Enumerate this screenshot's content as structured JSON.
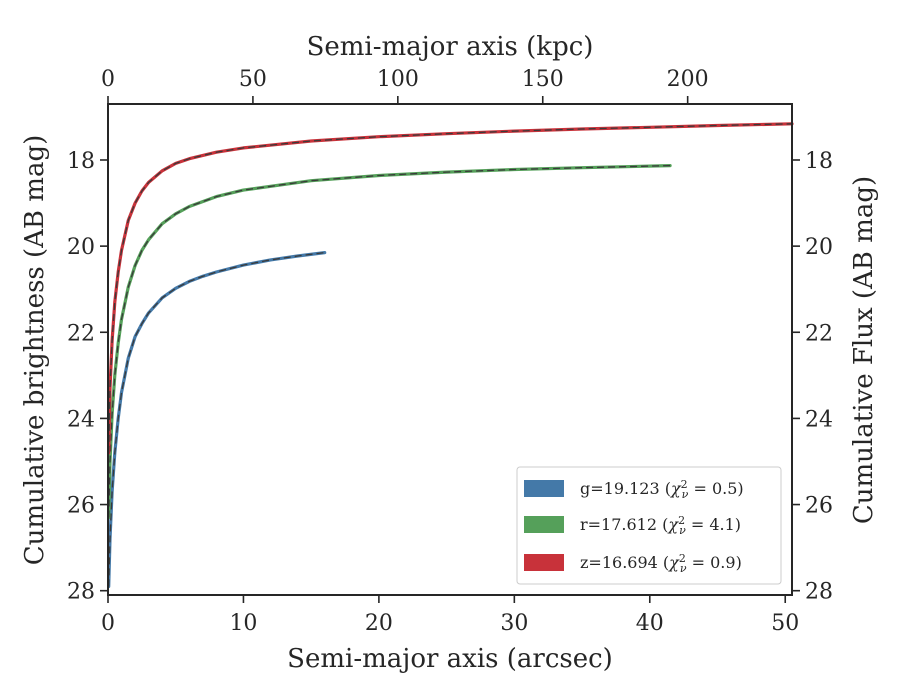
{
  "chart_data": {
    "type": "line",
    "axis_labels": {
      "bottom": "Semi-major axis (arcsec)",
      "top": "Semi-major axis (kpc)",
      "left": "Cumulative brightness (AB mag)",
      "right": "Cumulative Flux (AB mag)"
    },
    "xlim": [
      0,
      50.5
    ],
    "ylim": [
      28.1,
      16.7
    ],
    "y_inverted": true,
    "top_xlim_kpc": [
      0,
      236
    ],
    "x_ticks": [
      "0",
      "10",
      "20",
      "30",
      "40",
      "50"
    ],
    "y_ticks": [
      "18",
      "20",
      "22",
      "24",
      "26",
      "28"
    ],
    "top_ticks": [
      "0",
      "50",
      "100",
      "150",
      "200"
    ],
    "grid": false,
    "legend_position": "lower-right",
    "legend": [
      {
        "band": "g",
        "text": "g=19.123",
        "chi2": "0.5"
      },
      {
        "band": "r",
        "text": "r=17.612",
        "chi2": "4.1"
      },
      {
        "band": "z",
        "text": "z=16.694",
        "chi2": "0.9"
      }
    ],
    "series": [
      {
        "name": "g",
        "color": "#4479a8",
        "x": [
          0.05,
          0.15,
          0.3,
          0.5,
          0.75,
          1,
          1.5,
          2,
          2.5,
          3,
          4,
          5,
          6,
          7,
          8,
          10,
          12,
          14,
          16
        ],
        "y": [
          27.9,
          26.8,
          25.7,
          24.8,
          24.0,
          23.4,
          22.6,
          22.1,
          21.8,
          21.55,
          21.2,
          20.98,
          20.82,
          20.7,
          20.6,
          20.44,
          20.32,
          20.23,
          20.15
        ]
      },
      {
        "name": "r",
        "color": "#55a05a",
        "x": [
          0.05,
          0.15,
          0.3,
          0.5,
          0.75,
          1,
          1.5,
          2,
          2.5,
          3,
          4,
          5,
          6,
          8,
          10,
          15,
          20,
          25,
          30,
          35,
          41.5
        ],
        "y": [
          26.3,
          25.0,
          23.9,
          23.0,
          22.25,
          21.7,
          20.95,
          20.45,
          20.1,
          19.85,
          19.48,
          19.25,
          19.08,
          18.85,
          18.7,
          18.48,
          18.36,
          18.28,
          18.22,
          18.18,
          18.13
        ]
      },
      {
        "name": "z",
        "color": "#c8323a",
        "x": [
          0.05,
          0.15,
          0.3,
          0.5,
          0.75,
          1,
          1.5,
          2,
          2.5,
          3,
          4,
          5,
          6,
          8,
          10,
          15,
          20,
          25,
          30,
          35,
          40,
          45,
          50.5
        ],
        "y": [
          24.8,
          23.3,
          22.2,
          21.3,
          20.6,
          20.1,
          19.4,
          19.0,
          18.72,
          18.52,
          18.25,
          18.08,
          17.97,
          17.82,
          17.72,
          17.56,
          17.46,
          17.39,
          17.33,
          17.28,
          17.24,
          17.2,
          17.16
        ]
      }
    ]
  }
}
